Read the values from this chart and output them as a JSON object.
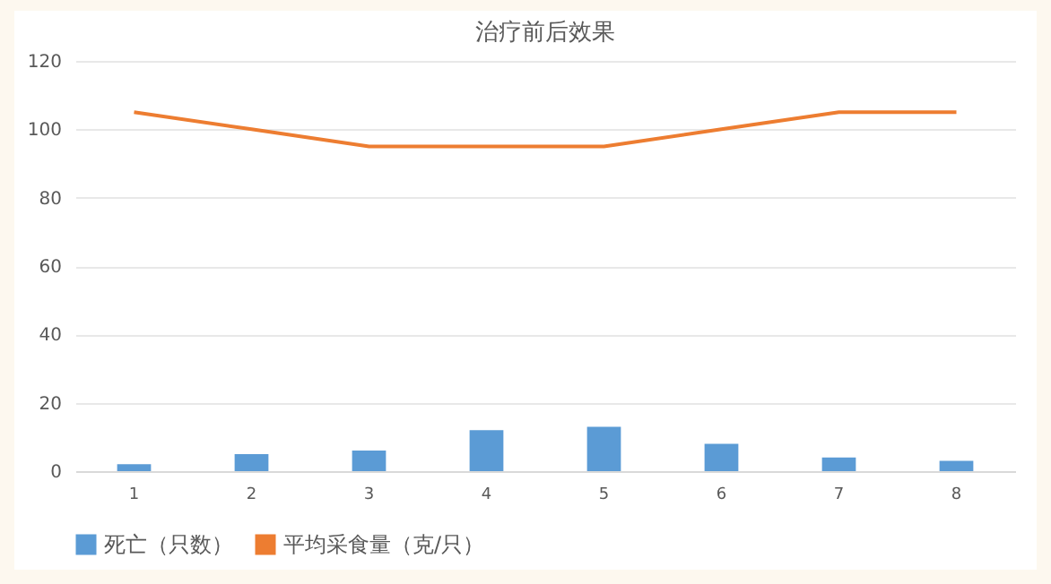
{
  "chart_data": {
    "type": "bar",
    "title": "治疗前后效果",
    "categories": [
      "1",
      "2",
      "3",
      "4",
      "5",
      "6",
      "7",
      "8"
    ],
    "series": [
      {
        "name": "死亡（只数）",
        "color": "#5b9bd5",
        "values": [
          2,
          5,
          6,
          12,
          13,
          8,
          4,
          3
        ]
      },
      {
        "name": "平均采食量（克/只）",
        "type": "line",
        "color": "#ed7d31",
        "values": [
          105,
          100,
          95,
          95,
          95,
          100,
          105,
          105
        ]
      }
    ],
    "ylim": [
      0,
      120
    ],
    "yticks": [
      0,
      20,
      40,
      60,
      80,
      100,
      120
    ],
    "grid": "y",
    "legend": "bottom"
  }
}
